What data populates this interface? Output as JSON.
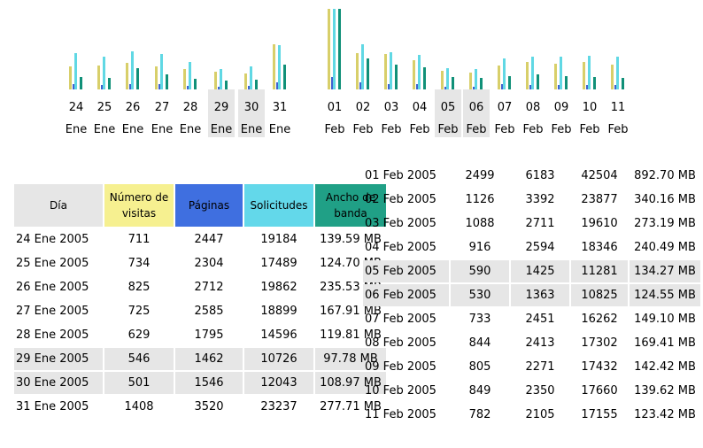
{
  "colors": {
    "visitas": "#d8cf6a",
    "paginas": "#4060d0",
    "solicitudes": "#60d8e4",
    "ancho": "#109078",
    "weekend": "#e6e6e6"
  },
  "headers": {
    "dia": "Día",
    "visitas": "Número de visitas",
    "paginas": "Páginas",
    "solicitudes": "Solicitudes",
    "ancho": "Ancho de banda"
  },
  "chart_data": {
    "type": "bar",
    "categories": [
      "24 Ene",
      "25 Ene",
      "26 Ene",
      "27 Ene",
      "28 Ene",
      "29 Ene",
      "30 Ene",
      "31 Ene",
      "01 Feb",
      "02 Feb",
      "03 Feb",
      "04 Feb",
      "05 Feb",
      "06 Feb",
      "07 Feb",
      "08 Feb",
      "09 Feb",
      "10 Feb",
      "11 Feb"
    ],
    "weekend": [
      false,
      false,
      false,
      false,
      false,
      true,
      true,
      false,
      false,
      false,
      false,
      false,
      true,
      true,
      false,
      false,
      false,
      false,
      false
    ],
    "series": [
      {
        "name": "Número de visitas",
        "values": [
          711,
          734,
          825,
          725,
          629,
          546,
          501,
          1408,
          2499,
          1126,
          1088,
          916,
          590,
          530,
          733,
          844,
          805,
          849,
          782
        ]
      },
      {
        "name": "Páginas",
        "values": [
          2447,
          2304,
          2712,
          2585,
          1795,
          1462,
          1546,
          3520,
          6183,
          3392,
          2711,
          2594,
          1425,
          1363,
          2451,
          2413,
          2271,
          2350,
          2105
        ]
      },
      {
        "name": "Solicitudes",
        "values": [
          19184,
          17489,
          19862,
          18899,
          14596,
          10726,
          12043,
          23237,
          42504,
          23877,
          19610,
          18346,
          11281,
          10825,
          16262,
          17302,
          17432,
          17660,
          17155
        ]
      },
      {
        "name": "Ancho de banda",
        "values": [
          139.59,
          124.7,
          235.53,
          167.91,
          119.81,
          97.78,
          108.97,
          277.71,
          892.7,
          340.16,
          273.19,
          240.49,
          134.27,
          124.55,
          149.1,
          169.41,
          142.42,
          139.62,
          123.42
        ]
      }
    ]
  },
  "left_rows": [
    {
      "date": "24 Ene 2005",
      "visitas": "711",
      "paginas": "2447",
      "solicitudes": "19184",
      "ancho": "139.59 MB",
      "we": false
    },
    {
      "date": "25 Ene 2005",
      "visitas": "734",
      "paginas": "2304",
      "solicitudes": "17489",
      "ancho": "124.70 MB",
      "we": false
    },
    {
      "date": "26 Ene 2005",
      "visitas": "825",
      "paginas": "2712",
      "solicitudes": "19862",
      "ancho": "235.53 MB",
      "we": false
    },
    {
      "date": "27 Ene 2005",
      "visitas": "725",
      "paginas": "2585",
      "solicitudes": "18899",
      "ancho": "167.91 MB",
      "we": false
    },
    {
      "date": "28 Ene 2005",
      "visitas": "629",
      "paginas": "1795",
      "solicitudes": "14596",
      "ancho": "119.81 MB",
      "we": false
    },
    {
      "date": "29 Ene 2005",
      "visitas": "546",
      "paginas": "1462",
      "solicitudes": "10726",
      "ancho": "97.78 MB",
      "we": true
    },
    {
      "date": "30 Ene 2005",
      "visitas": "501",
      "paginas": "1546",
      "solicitudes": "12043",
      "ancho": "108.97 MB",
      "we": true
    },
    {
      "date": "31 Ene 2005",
      "visitas": "1408",
      "paginas": "3520",
      "solicitudes": "23237",
      "ancho": "277.71 MB",
      "we": false
    }
  ],
  "right_rows": [
    {
      "date": "01 Feb 2005",
      "visitas": "2499",
      "paginas": "6183",
      "solicitudes": "42504",
      "ancho": "892.70 MB",
      "we": false
    },
    {
      "date": "02 Feb 2005",
      "visitas": "1126",
      "paginas": "3392",
      "solicitudes": "23877",
      "ancho": "340.16 MB",
      "we": false
    },
    {
      "date": "03 Feb 2005",
      "visitas": "1088",
      "paginas": "2711",
      "solicitudes": "19610",
      "ancho": "273.19 MB",
      "we": false
    },
    {
      "date": "04 Feb 2005",
      "visitas": "916",
      "paginas": "2594",
      "solicitudes": "18346",
      "ancho": "240.49 MB",
      "we": false
    },
    {
      "date": "05 Feb 2005",
      "visitas": "590",
      "paginas": "1425",
      "solicitudes": "11281",
      "ancho": "134.27 MB",
      "we": true
    },
    {
      "date": "06 Feb 2005",
      "visitas": "530",
      "paginas": "1363",
      "solicitudes": "10825",
      "ancho": "124.55 MB",
      "we": true
    },
    {
      "date": "07 Feb 2005",
      "visitas": "733",
      "paginas": "2451",
      "solicitudes": "16262",
      "ancho": "149.10 MB",
      "we": false
    },
    {
      "date": "08 Feb 2005",
      "visitas": "844",
      "paginas": "2413",
      "solicitudes": "17302",
      "ancho": "169.41 MB",
      "we": false
    },
    {
      "date": "09 Feb 2005",
      "visitas": "805",
      "paginas": "2271",
      "solicitudes": "17432",
      "ancho": "142.42 MB",
      "we": false
    },
    {
      "date": "10 Feb 2005",
      "visitas": "849",
      "paginas": "2350",
      "solicitudes": "17660",
      "ancho": "139.62 MB",
      "we": false
    },
    {
      "date": "11 Feb 2005",
      "visitas": "782",
      "paginas": "2105",
      "solicitudes": "17155",
      "ancho": "123.42 MB",
      "we": false
    }
  ]
}
